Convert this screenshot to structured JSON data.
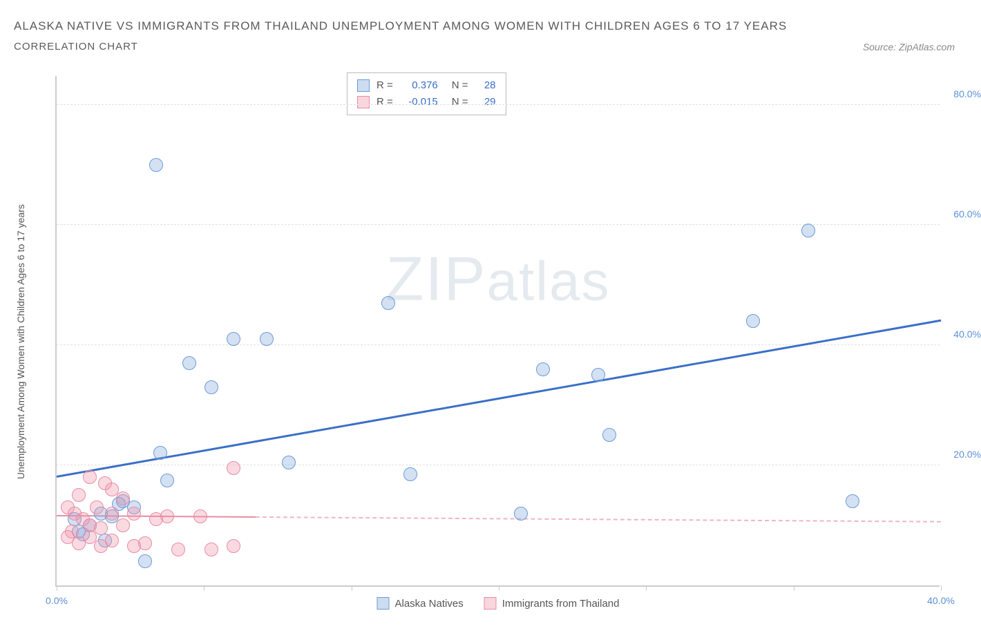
{
  "header": {
    "title": "ALASKA NATIVE VS IMMIGRANTS FROM THAILAND UNEMPLOYMENT AMONG WOMEN WITH CHILDREN AGES 6 TO 17 YEARS",
    "subtitle": "CORRELATION CHART",
    "source": "Source: ZipAtlas.com"
  },
  "chart": {
    "type": "scatter",
    "y_axis_label": "Unemployment Among Women with Children Ages 6 to 17 years",
    "xlim": [
      0,
      40
    ],
    "ylim": [
      0,
      85
    ],
    "x_ticks": [
      0,
      6.67,
      13.33,
      20,
      26.67,
      33.33,
      40
    ],
    "x_tick_labels": [
      "0.0%",
      "",
      "",
      "",
      "",
      "",
      "40.0%"
    ],
    "y_ticks": [
      20,
      40,
      60,
      80
    ],
    "y_tick_labels": [
      "20.0%",
      "40.0%",
      "60.0%",
      "80.0%"
    ],
    "grid_color": "#e0e0e0",
    "axis_color": "#cccccc",
    "background_color": "#ffffff",
    "marker_radius": 10,
    "series": [
      {
        "name": "Alaska Natives",
        "color_fill": "rgba(130,170,220,0.35)",
        "color_stroke": "#6a9bd8",
        "trend_color": "#3b6fc9",
        "R": "0.376",
        "N": "28",
        "trend": {
          "x1": 0,
          "y1": 18,
          "x2": 40,
          "y2": 44
        },
        "points": [
          [
            4.5,
            70
          ],
          [
            34,
            59
          ],
          [
            15,
            47
          ],
          [
            8,
            41
          ],
          [
            9.5,
            41
          ],
          [
            6,
            37
          ],
          [
            31.5,
            44
          ],
          [
            7,
            33
          ],
          [
            22,
            36
          ],
          [
            24.5,
            35
          ],
          [
            4.7,
            22
          ],
          [
            25,
            25
          ],
          [
            10.5,
            20.5
          ],
          [
            16,
            18.5
          ],
          [
            5,
            17.5
          ],
          [
            3,
            14
          ],
          [
            36,
            14
          ],
          [
            21,
            12
          ],
          [
            2,
            12
          ],
          [
            2.5,
            11.5
          ],
          [
            1.5,
            10
          ],
          [
            2.2,
            7.5
          ],
          [
            4,
            4
          ],
          [
            3.5,
            13
          ],
          [
            1,
            9
          ],
          [
            2.8,
            13.5
          ],
          [
            0.8,
            11
          ],
          [
            1.2,
            8.5
          ]
        ]
      },
      {
        "name": "Immigrants from Thailand",
        "color_fill": "rgba(240,150,170,0.35)",
        "color_stroke": "#e88ba5",
        "trend_color": "#e88ba5",
        "R": "-0.015",
        "N": "29",
        "trend": {
          "x1": 0,
          "y1": 11.5,
          "x2": 40,
          "y2": 10.5
        },
        "trend_solid_to_x": 9,
        "points": [
          [
            1.5,
            18
          ],
          [
            2.2,
            17
          ],
          [
            8,
            19.5
          ],
          [
            2.5,
            16
          ],
          [
            1,
            15
          ],
          [
            3,
            14.5
          ],
          [
            0.5,
            13
          ],
          [
            1.8,
            13
          ],
          [
            2.5,
            12
          ],
          [
            0.8,
            12
          ],
          [
            1.2,
            11
          ],
          [
            3.5,
            12
          ],
          [
            5,
            11.5
          ],
          [
            4.5,
            11
          ],
          [
            6.5,
            11.5
          ],
          [
            1.5,
            10
          ],
          [
            2,
            9.5
          ],
          [
            0.7,
            9
          ],
          [
            3,
            10
          ],
          [
            0.5,
            8
          ],
          [
            1.5,
            8
          ],
          [
            2.5,
            7.5
          ],
          [
            1,
            7
          ],
          [
            2,
            6.5
          ],
          [
            4,
            7
          ],
          [
            5.5,
            6
          ],
          [
            3.5,
            6.5
          ],
          [
            7,
            6
          ],
          [
            8,
            6.5
          ]
        ]
      }
    ],
    "stats_box": {
      "rows": [
        {
          "swatch": "blue",
          "r_label": "R =",
          "r_val": "0.376",
          "n_label": "N =",
          "n_val": "28"
        },
        {
          "swatch": "pink",
          "r_label": "R =",
          "r_val": "-0.015",
          "n_label": "N =",
          "n_val": "29"
        }
      ]
    },
    "bottom_legend": [
      {
        "swatch": "blue",
        "label": "Alaska Natives"
      },
      {
        "swatch": "pink",
        "label": "Immigrants from Thailand"
      }
    ],
    "watermark": {
      "part1": "ZIP",
      "part2": "atlas"
    }
  }
}
